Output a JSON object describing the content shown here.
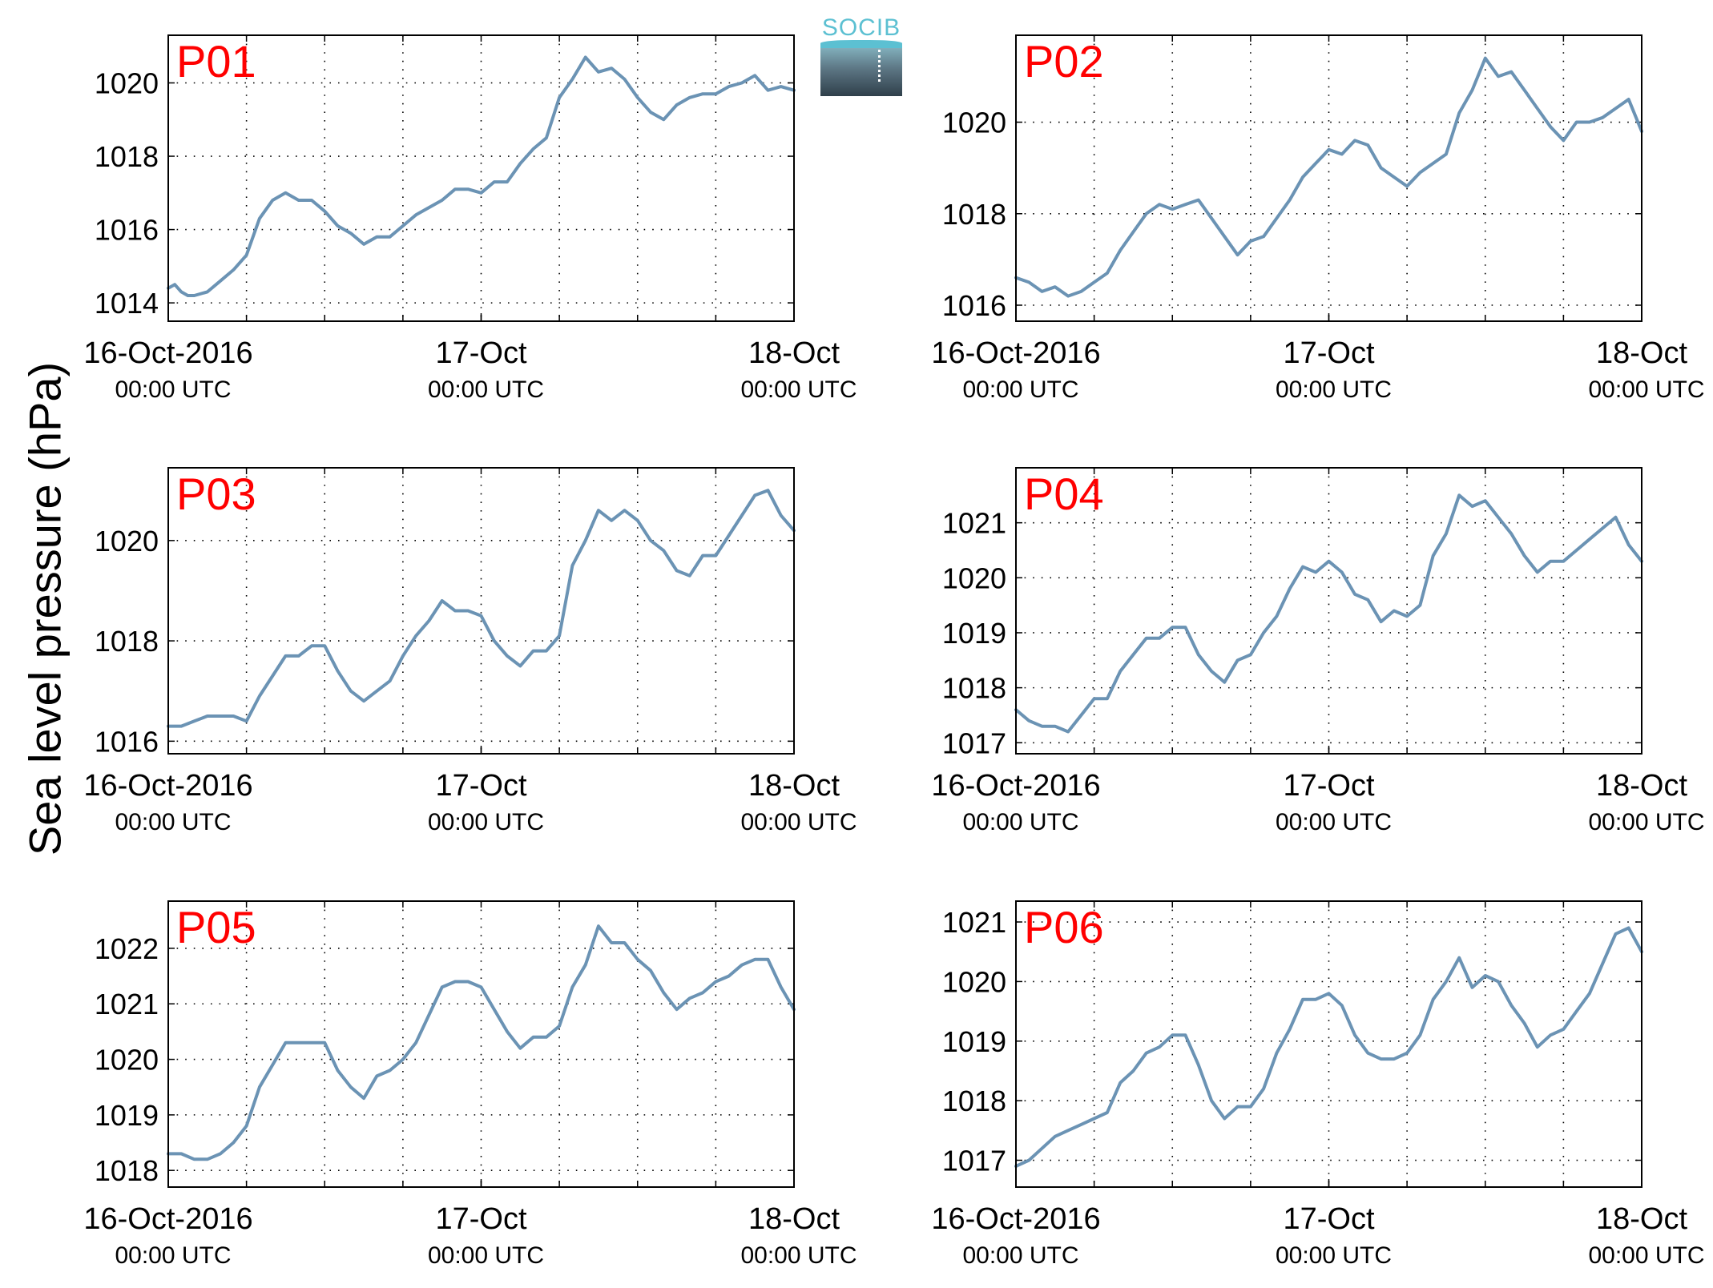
{
  "figure": {
    "ylabel": "Sea level pressure (hPa)",
    "logo_text": "SOCIB",
    "line_color": "#6b93b4",
    "panel_label_color": "#ff0000"
  },
  "chart_data": [
    {
      "type": "line",
      "label": "P01",
      "xlim": [
        0,
        48
      ],
      "ylim": [
        1013.5,
        1021.3
      ],
      "yticks": [
        1014,
        1016,
        1018,
        1020
      ],
      "xticks": [
        0,
        24,
        48
      ],
      "xtick_labels": [
        "16-Oct-2016",
        "17-Oct",
        "18-Oct"
      ],
      "xtick_sublabels": [
        "00:00 UTC",
        "00:00 UTC",
        "00:00 UTC"
      ],
      "x": [
        0,
        0.5,
        1,
        1.5,
        2,
        3,
        4,
        5,
        6,
        7,
        8,
        9,
        10,
        11,
        12,
        13,
        14,
        15,
        16,
        17,
        18,
        19,
        20,
        21,
        22,
        23,
        24,
        25,
        26,
        27,
        28,
        29,
        30,
        31,
        32,
        33,
        34,
        35,
        36,
        37,
        38,
        39,
        40,
        41,
        42,
        43,
        44,
        45,
        46,
        47,
        48
      ],
      "values": [
        1014.4,
        1014.5,
        1014.3,
        1014.2,
        1014.2,
        1014.3,
        1014.6,
        1014.9,
        1015.3,
        1016.3,
        1016.8,
        1017.0,
        1016.8,
        1016.8,
        1016.5,
        1016.1,
        1015.9,
        1015.6,
        1015.8,
        1015.8,
        1016.1,
        1016.4,
        1016.6,
        1016.8,
        1017.1,
        1017.1,
        1017.0,
        1017.3,
        1017.3,
        1017.8,
        1018.2,
        1018.5,
        1019.6,
        1020.1,
        1020.7,
        1020.3,
        1020.4,
        1020.1,
        1019.6,
        1019.2,
        1019.0,
        1019.4,
        1019.6,
        1019.7,
        1019.7,
        1019.9,
        1020.0,
        1020.2,
        1019.8,
        1019.9,
        1019.8
      ]
    },
    {
      "type": "line",
      "label": "P02",
      "xlim": [
        0,
        48
      ],
      "ylim": [
        1015.65,
        1021.9
      ],
      "yticks": [
        1016,
        1018,
        1020
      ],
      "xticks": [
        0,
        24,
        48
      ],
      "xtick_labels": [
        "16-Oct-2016",
        "17-Oct",
        "18-Oct"
      ],
      "xtick_sublabels": [
        "00:00 UTC",
        "00:00 UTC",
        "00:00 UTC"
      ],
      "x": [
        0,
        1,
        2,
        3,
        4,
        5,
        6,
        7,
        8,
        9,
        10,
        11,
        12,
        13,
        14,
        15,
        16,
        17,
        18,
        19,
        20,
        21,
        22,
        23,
        24,
        25,
        26,
        27,
        28,
        29,
        30,
        31,
        32,
        33,
        34,
        35,
        36,
        37,
        38,
        39,
        40,
        41,
        42,
        43,
        44,
        45,
        46,
        47,
        48
      ],
      "values": [
        1016.6,
        1016.5,
        1016.3,
        1016.4,
        1016.2,
        1016.3,
        1016.5,
        1016.7,
        1017.2,
        1017.6,
        1018.0,
        1018.2,
        1018.1,
        1018.2,
        1018.3,
        1017.9,
        1017.5,
        1017.1,
        1017.4,
        1017.5,
        1017.9,
        1018.3,
        1018.8,
        1019.1,
        1019.4,
        1019.3,
        1019.6,
        1019.5,
        1019.0,
        1018.8,
        1018.6,
        1018.9,
        1019.1,
        1019.3,
        1020.2,
        1020.7,
        1021.4,
        1021.0,
        1021.1,
        1020.7,
        1020.3,
        1019.9,
        1019.6,
        1020.0,
        1020.0,
        1020.1,
        1020.3,
        1020.5,
        1019.8
      ]
    },
    {
      "type": "line",
      "label": "P03",
      "xlim": [
        0,
        48
      ],
      "ylim": [
        1015.75,
        1021.45
      ],
      "yticks": [
        1016,
        1018,
        1020
      ],
      "xticks": [
        0,
        24,
        48
      ],
      "xtick_labels": [
        "16-Oct-2016",
        "17-Oct",
        "18-Oct"
      ],
      "xtick_sublabels": [
        "00:00 UTC",
        "00:00 UTC",
        "00:00 UTC"
      ],
      "x": [
        0,
        1,
        2,
        3,
        4,
        5,
        6,
        7,
        8,
        9,
        10,
        11,
        12,
        13,
        14,
        15,
        16,
        17,
        18,
        19,
        20,
        21,
        22,
        23,
        24,
        25,
        26,
        27,
        28,
        29,
        30,
        31,
        32,
        33,
        34,
        35,
        36,
        37,
        38,
        39,
        40,
        41,
        42,
        43,
        44,
        45,
        46,
        47,
        48
      ],
      "values": [
        1016.3,
        1016.3,
        1016.4,
        1016.5,
        1016.5,
        1016.5,
        1016.4,
        1016.9,
        1017.3,
        1017.7,
        1017.7,
        1017.9,
        1017.9,
        1017.4,
        1017.0,
        1016.8,
        1017.0,
        1017.2,
        1017.7,
        1018.1,
        1018.4,
        1018.8,
        1018.6,
        1018.6,
        1018.5,
        1018.0,
        1017.7,
        1017.5,
        1017.8,
        1017.8,
        1018.1,
        1019.5,
        1020.0,
        1020.6,
        1020.4,
        1020.6,
        1020.4,
        1020.0,
        1019.8,
        1019.4,
        1019.3,
        1019.7,
        1019.7,
        1020.1,
        1020.5,
        1020.9,
        1021.0,
        1020.5,
        1020.2
      ]
    },
    {
      "type": "line",
      "label": "P04",
      "xlim": [
        0,
        48
      ],
      "ylim": [
        1016.8,
        1022.0
      ],
      "yticks": [
        1017,
        1018,
        1019,
        1020,
        1021
      ],
      "xticks": [
        0,
        24,
        48
      ],
      "xtick_labels": [
        "16-Oct-2016",
        "17-Oct",
        "18-Oct"
      ],
      "xtick_sublabels": [
        "00:00 UTC",
        "00:00 UTC",
        "00:00 UTC"
      ],
      "x": [
        0,
        1,
        2,
        3,
        4,
        5,
        6,
        7,
        8,
        9,
        10,
        11,
        12,
        13,
        14,
        15,
        16,
        17,
        18,
        19,
        20,
        21,
        22,
        23,
        24,
        25,
        26,
        27,
        28,
        29,
        30,
        31,
        32,
        33,
        34,
        35,
        36,
        37,
        38,
        39,
        40,
        41,
        42,
        43,
        44,
        45,
        46,
        47,
        48
      ],
      "values": [
        1017.6,
        1017.4,
        1017.3,
        1017.3,
        1017.2,
        1017.5,
        1017.8,
        1017.8,
        1018.3,
        1018.6,
        1018.9,
        1018.9,
        1019.1,
        1019.1,
        1018.6,
        1018.3,
        1018.1,
        1018.5,
        1018.6,
        1019.0,
        1019.3,
        1019.8,
        1020.2,
        1020.1,
        1020.3,
        1020.1,
        1019.7,
        1019.6,
        1019.2,
        1019.4,
        1019.3,
        1019.5,
        1020.4,
        1020.8,
        1021.5,
        1021.3,
        1021.4,
        1021.1,
        1020.8,
        1020.4,
        1020.1,
        1020.3,
        1020.3,
        1020.5,
        1020.7,
        1020.9,
        1021.1,
        1020.6,
        1020.3
      ]
    },
    {
      "type": "line",
      "label": "P05",
      "xlim": [
        0,
        48
      ],
      "ylim": [
        1017.7,
        1022.85
      ],
      "yticks": [
        1018,
        1019,
        1020,
        1021,
        1022
      ],
      "xticks": [
        0,
        24,
        48
      ],
      "xtick_labels": [
        "16-Oct-2016",
        "17-Oct",
        "18-Oct"
      ],
      "xtick_sublabels": [
        "00:00 UTC",
        "00:00 UTC",
        "00:00 UTC"
      ],
      "x": [
        0,
        1,
        2,
        3,
        4,
        5,
        6,
        7,
        8,
        9,
        10,
        11,
        12,
        13,
        14,
        15,
        16,
        17,
        18,
        19,
        20,
        21,
        22,
        23,
        24,
        25,
        26,
        27,
        28,
        29,
        30,
        31,
        32,
        33,
        34,
        35,
        36,
        37,
        38,
        39,
        40,
        41,
        42,
        43,
        44,
        45,
        46,
        47,
        48
      ],
      "values": [
        1018.3,
        1018.3,
        1018.2,
        1018.2,
        1018.3,
        1018.5,
        1018.8,
        1019.5,
        1019.9,
        1020.3,
        1020.3,
        1020.3,
        1020.3,
        1019.8,
        1019.5,
        1019.3,
        1019.7,
        1019.8,
        1020.0,
        1020.3,
        1020.8,
        1021.3,
        1021.4,
        1021.4,
        1021.3,
        1020.9,
        1020.5,
        1020.2,
        1020.4,
        1020.4,
        1020.6,
        1021.3,
        1021.7,
        1022.4,
        1022.1,
        1022.1,
        1021.8,
        1021.6,
        1021.2,
        1020.9,
        1021.1,
        1021.2,
        1021.4,
        1021.5,
        1021.7,
        1021.8,
        1021.8,
        1021.3,
        1020.9
      ]
    },
    {
      "type": "line",
      "label": "P06",
      "xlim": [
        0,
        48
      ],
      "ylim": [
        1016.55,
        1021.35
      ],
      "yticks": [
        1017,
        1018,
        1019,
        1020,
        1021
      ],
      "xticks": [
        0,
        24,
        48
      ],
      "xtick_labels": [
        "16-Oct-2016",
        "17-Oct",
        "18-Oct"
      ],
      "xtick_sublabels": [
        "00:00 UTC",
        "00:00 UTC",
        "00:00 UTC"
      ],
      "x": [
        0,
        1,
        2,
        3,
        4,
        5,
        6,
        7,
        8,
        9,
        10,
        11,
        12,
        13,
        14,
        15,
        16,
        17,
        18,
        19,
        20,
        21,
        22,
        23,
        24,
        25,
        26,
        27,
        28,
        29,
        30,
        31,
        32,
        33,
        34,
        35,
        36,
        37,
        38,
        39,
        40,
        41,
        42,
        43,
        44,
        45,
        46,
        47,
        48
      ],
      "values": [
        1016.9,
        1017.0,
        1017.2,
        1017.4,
        1017.5,
        1017.6,
        1017.7,
        1017.8,
        1018.3,
        1018.5,
        1018.8,
        1018.9,
        1019.1,
        1019.1,
        1018.6,
        1018.0,
        1017.7,
        1017.9,
        1017.9,
        1018.2,
        1018.8,
        1019.2,
        1019.7,
        1019.7,
        1019.8,
        1019.6,
        1019.1,
        1018.8,
        1018.7,
        1018.7,
        1018.8,
        1019.1,
        1019.7,
        1020.0,
        1020.4,
        1019.9,
        1020.1,
        1020.0,
        1019.6,
        1019.3,
        1018.9,
        1019.1,
        1019.2,
        1019.5,
        1019.8,
        1020.3,
        1020.8,
        1020.9,
        1020.5
      ]
    }
  ]
}
